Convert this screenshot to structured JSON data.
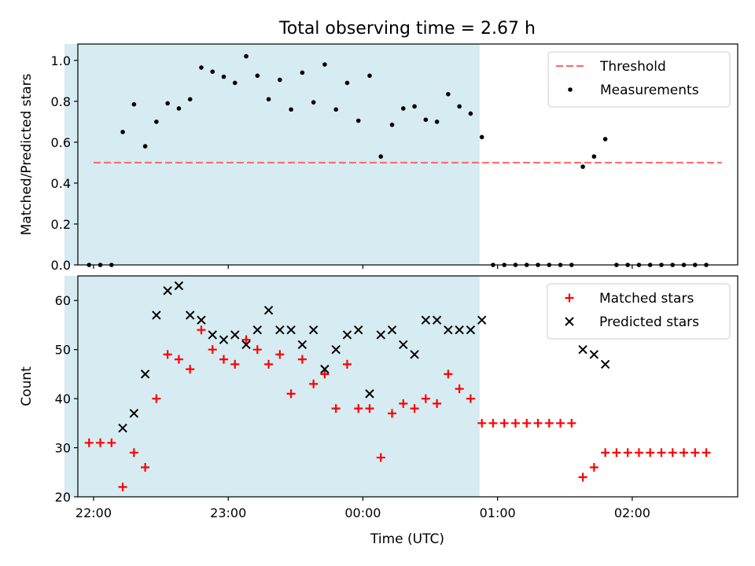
{
  "title": "Total observing time = 2.67 h",
  "xlabel": "Time (UTC)",
  "x_ticks": [
    "22:00",
    "23:00",
    "00:00",
    "01:00",
    "02:00"
  ],
  "chart_data": [
    {
      "type": "scatter",
      "ylabel": "Matched/Predicted stars",
      "ylim": [
        0,
        1.08
      ],
      "y_ticks": [
        "0.0",
        "0.2",
        "0.4",
        "0.6",
        "0.8",
        "1.0"
      ],
      "x_range_hours": [
        "21:53",
        "02:47"
      ],
      "grid": false,
      "legend": "top-right",
      "shaded_interval": [
        "21:47",
        "00:52"
      ],
      "shade_color": "#add8e6",
      "threshold": {
        "name": "Threshold",
        "x": [
          "22:00",
          "02:40"
        ],
        "y": 0.5,
        "color": "#ff6666",
        "style": "dashed"
      },
      "series": [
        {
          "name": "Measurements",
          "color": "#000000",
          "marker": "dot",
          "x": [
            "21:58",
            "22:03",
            "22:08",
            "22:13",
            "22:18",
            "22:23",
            "22:28",
            "22:33",
            "22:38",
            "22:43",
            "22:48",
            "22:53",
            "22:58",
            "23:03",
            "23:08",
            "23:13",
            "23:18",
            "23:23",
            "23:28",
            "23:33",
            "23:38",
            "23:43",
            "23:48",
            "23:53",
            "23:58",
            "00:03",
            "00:08",
            "00:13",
            "00:18",
            "00:23",
            "00:28",
            "00:33",
            "00:38",
            "00:43",
            "00:48",
            "00:53",
            "00:58",
            "01:03",
            "01:08",
            "01:13",
            "01:18",
            "01:23",
            "01:28",
            "01:33",
            "01:38",
            "01:43",
            "01:48",
            "01:53",
            "01:58",
            "02:03",
            "02:08",
            "02:13",
            "02:18",
            "02:23",
            "02:28",
            "02:33"
          ],
          "y": [
            0.0,
            0.0,
            0.0,
            0.65,
            0.785,
            0.58,
            0.7,
            0.79,
            0.765,
            0.81,
            0.965,
            0.945,
            0.92,
            0.89,
            1.02,
            0.925,
            0.81,
            0.905,
            0.76,
            0.94,
            0.795,
            0.98,
            0.76,
            0.89,
            0.705,
            0.925,
            0.53,
            0.685,
            0.765,
            0.775,
            0.71,
            0.7,
            0.835,
            0.775,
            0.74,
            0.625,
            0.0,
            0.0,
            0.0,
            0.0,
            0.0,
            0.0,
            0.0,
            0.0,
            0.48,
            0.53,
            0.615,
            0.0,
            0.0,
            0.0,
            0.0,
            0.0,
            0.0,
            0.0,
            0.0,
            0.0
          ]
        }
      ]
    },
    {
      "type": "scatter",
      "ylabel": "Count",
      "ylim": [
        20,
        65
      ],
      "y_ticks": [
        "20",
        "30",
        "40",
        "50",
        "60"
      ],
      "x_range_hours": [
        "21:53",
        "02:47"
      ],
      "grid": false,
      "legend": "top-right",
      "shaded_interval": [
        "21:47",
        "00:52"
      ],
      "shade_color": "#add8e6",
      "series": [
        {
          "name": "Matched stars",
          "color": "#ff0000",
          "marker": "plus",
          "x": [
            "21:58",
            "22:03",
            "22:08",
            "22:13",
            "22:18",
            "22:23",
            "22:28",
            "22:33",
            "22:38",
            "22:43",
            "22:48",
            "22:53",
            "22:58",
            "23:03",
            "23:08",
            "23:13",
            "23:18",
            "23:23",
            "23:28",
            "23:33",
            "23:38",
            "23:43",
            "23:48",
            "23:53",
            "23:58",
            "00:03",
            "00:08",
            "00:13",
            "00:18",
            "00:23",
            "00:28",
            "00:33",
            "00:38",
            "00:43",
            "00:48",
            "00:53",
            "00:58",
            "01:03",
            "01:08",
            "01:13",
            "01:18",
            "01:23",
            "01:28",
            "01:33",
            "01:38",
            "01:43",
            "01:48",
            "01:53",
            "01:58",
            "02:03",
            "02:08",
            "02:13",
            "02:18",
            "02:23",
            "02:28",
            "02:33"
          ],
          "y": [
            31,
            31,
            31,
            22,
            29,
            26,
            40,
            49,
            48,
            46,
            54,
            50,
            48,
            47,
            52,
            50,
            47,
            49,
            41,
            48,
            43,
            45,
            38,
            47,
            38,
            38,
            28,
            37,
            39,
            38,
            40,
            39,
            45,
            42,
            40,
            35,
            35,
            35,
            35,
            35,
            35,
            35,
            35,
            35,
            24,
            26,
            29,
            29,
            29,
            29,
            29,
            29,
            29,
            29,
            29,
            29
          ]
        },
        {
          "name": "Predicted stars",
          "color": "#000000",
          "marker": "x",
          "x": [
            "22:13",
            "22:18",
            "22:23",
            "22:28",
            "22:33",
            "22:38",
            "22:43",
            "22:48",
            "22:53",
            "22:58",
            "23:03",
            "23:08",
            "23:13",
            "23:18",
            "23:23",
            "23:28",
            "23:33",
            "23:38",
            "23:43",
            "23:48",
            "23:53",
            "23:58",
            "00:03",
            "00:08",
            "00:13",
            "00:18",
            "00:23",
            "00:28",
            "00:33",
            "00:38",
            "00:43",
            "00:48",
            "00:53",
            "01:38",
            "01:43",
            "01:48"
          ],
          "y": [
            34,
            37,
            45,
            57,
            62,
            63,
            57,
            56,
            53,
            52,
            53,
            51,
            54,
            58,
            54,
            54,
            51,
            54,
            46,
            50,
            53,
            54,
            41,
            53,
            54,
            51,
            49,
            56,
            56,
            54,
            54,
            54,
            56,
            50,
            49,
            47
          ]
        }
      ]
    }
  ]
}
